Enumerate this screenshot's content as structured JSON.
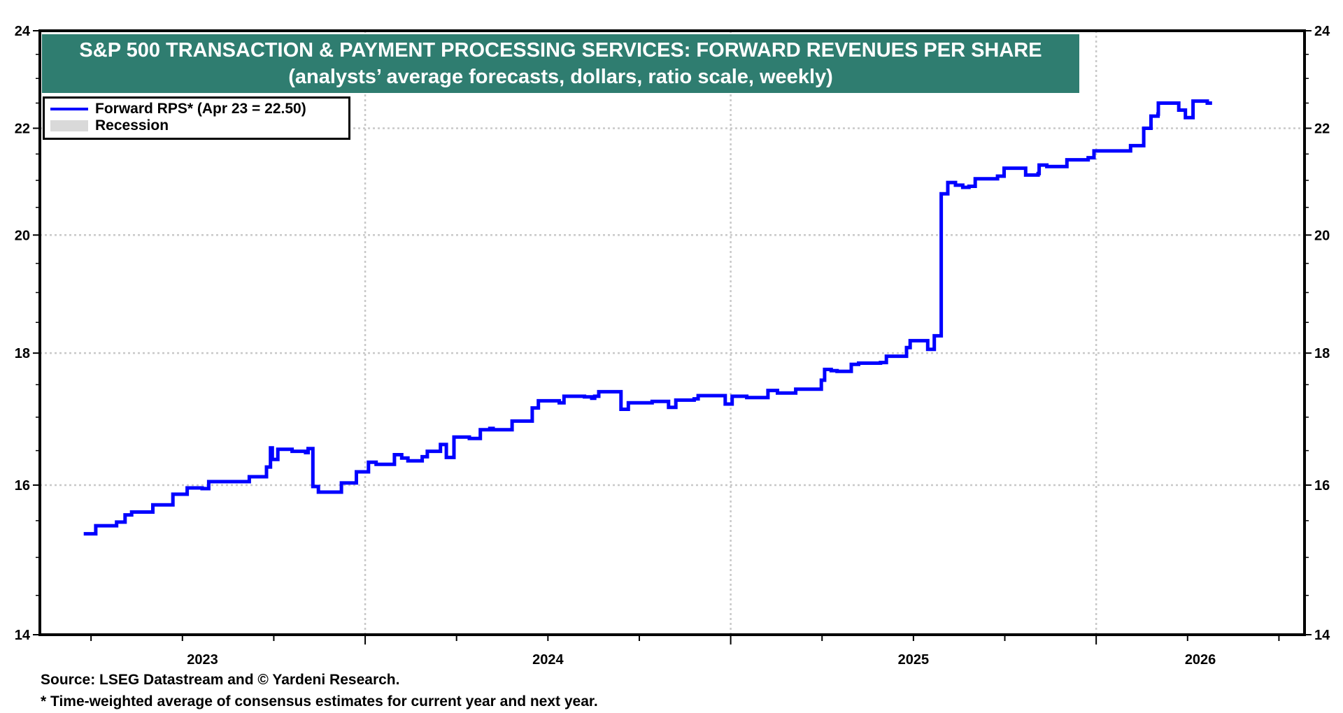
{
  "chart_data": {
    "type": "line",
    "title": "S&P 500 TRANSACTION & PAYMENT PROCESSING SERVICES: FORWARD REVENUES PER SHARE",
    "subtitle": "(analysts’ average forecasts, dollars, ratio scale, weekly)",
    "xlabel": "",
    "ylabel": "",
    "y_scale": "log",
    "ylim": [
      14,
      24
    ],
    "y_ticks": [
      14,
      16,
      18,
      20,
      22,
      24
    ],
    "y_tick_labels": [
      "14",
      "16",
      "18",
      "20",
      "22",
      "24"
    ],
    "y_minor_ticks": [
      14.5,
      15,
      15.5,
      16.5,
      17,
      17.5,
      18.5,
      19,
      19.5,
      20.5,
      21,
      21.5,
      22.5,
      23,
      23.5
    ],
    "xlim": [
      2023.11,
      2026.57
    ],
    "x_tick_labels": [
      "2023",
      "2024",
      "2025",
      "2026"
    ],
    "x_year_starts": [
      2024,
      2025,
      2026
    ],
    "grid": true,
    "legend": {
      "placement": "top-left",
      "entries": [
        {
          "label": "Forward RPS* (Apr 23 = 22.50)",
          "color": "#0000FF",
          "kind": "line"
        },
        {
          "label": "Recession",
          "color": "#D9D9D9",
          "kind": "area"
        }
      ]
    },
    "series": [
      {
        "name": "Forward RPS*",
        "color": "#0000FF",
        "step": true,
        "points": [
          [
            2023.23,
            15.32
          ],
          [
            2023.263,
            15.43
          ],
          [
            2023.32,
            15.48
          ],
          [
            2023.343,
            15.58
          ],
          [
            2023.361,
            15.62
          ],
          [
            2023.419,
            15.72
          ],
          [
            2023.474,
            15.87
          ],
          [
            2023.513,
            15.96
          ],
          [
            2023.554,
            15.95
          ],
          [
            2023.572,
            16.05
          ],
          [
            2023.683,
            16.12
          ],
          [
            2023.73,
            16.26
          ],
          [
            2023.741,
            16.54
          ],
          [
            2023.746,
            16.37
          ],
          [
            2023.761,
            16.52
          ],
          [
            2023.8,
            16.49
          ],
          [
            2023.837,
            16.47
          ],
          [
            2023.844,
            16.53
          ],
          [
            2023.857,
            15.98
          ],
          [
            2023.872,
            15.9
          ],
          [
            2023.935,
            16.03
          ],
          [
            2023.976,
            16.19
          ],
          [
            2024.009,
            16.33
          ],
          [
            2024.03,
            16.3
          ],
          [
            2024.08,
            16.44
          ],
          [
            2024.1,
            16.39
          ],
          [
            2024.117,
            16.35
          ],
          [
            2024.156,
            16.41
          ],
          [
            2024.17,
            16.49
          ],
          [
            2024.206,
            16.59
          ],
          [
            2024.222,
            16.4
          ],
          [
            2024.243,
            16.7
          ],
          [
            2024.285,
            16.68
          ],
          [
            2024.315,
            16.81
          ],
          [
            2024.341,
            16.83
          ],
          [
            2024.35,
            16.81
          ],
          [
            2024.402,
            16.94
          ],
          [
            2024.457,
            17.14
          ],
          [
            2024.474,
            17.25
          ],
          [
            2024.531,
            17.22
          ],
          [
            2024.544,
            17.32
          ],
          [
            2024.6,
            17.31
          ],
          [
            2024.62,
            17.29
          ],
          [
            2024.628,
            17.32
          ],
          [
            2024.639,
            17.39
          ],
          [
            2024.7,
            17.12
          ],
          [
            2024.72,
            17.22
          ],
          [
            2024.785,
            17.24
          ],
          [
            2024.83,
            17.15
          ],
          [
            2024.85,
            17.26
          ],
          [
            2024.9,
            17.28
          ],
          [
            2024.911,
            17.33
          ],
          [
            2024.985,
            17.2
          ],
          [
            2025.004,
            17.32
          ],
          [
            2025.044,
            17.3
          ],
          [
            2025.102,
            17.41
          ],
          [
            2025.128,
            17.37
          ],
          [
            2025.178,
            17.43
          ],
          [
            2025.248,
            17.57
          ],
          [
            2025.257,
            17.74
          ],
          [
            2025.275,
            17.72
          ],
          [
            2025.291,
            17.71
          ],
          [
            2025.33,
            17.82
          ],
          [
            2025.35,
            17.84
          ],
          [
            2025.41,
            17.85
          ],
          [
            2025.426,
            17.95
          ],
          [
            2025.481,
            18.09
          ],
          [
            2025.491,
            18.2
          ],
          [
            2025.539,
            18.06
          ],
          [
            2025.557,
            18.28
          ],
          [
            2025.576,
            20.75
          ],
          [
            2025.594,
            20.96
          ],
          [
            2025.615,
            20.91
          ],
          [
            2025.635,
            20.87
          ],
          [
            2025.652,
            20.89
          ],
          [
            2025.669,
            21.03
          ],
          [
            2025.73,
            21.08
          ],
          [
            2025.748,
            21.23
          ],
          [
            2025.807,
            21.1
          ],
          [
            2025.841,
            21.13
          ],
          [
            2025.844,
            21.29
          ],
          [
            2025.865,
            21.26
          ],
          [
            2025.92,
            21.39
          ],
          [
            2025.978,
            21.43
          ],
          [
            2025.994,
            21.56
          ],
          [
            2026.094,
            21.66
          ],
          [
            2026.13,
            22.0
          ],
          [
            2026.15,
            22.24
          ],
          [
            2026.169,
            22.28
          ],
          [
            2026.17,
            22.5
          ],
          [
            2026.226,
            22.36
          ],
          [
            2026.244,
            22.21
          ],
          [
            2026.265,
            22.54
          ],
          [
            2026.304,
            22.5
          ],
          [
            2026.317,
            22.5
          ]
        ]
      }
    ],
    "footnotes": [
      "Source: LSEG Datastream and © Yardeni Research.",
      "* Time-weighted average of consensus estimates for current year and next year."
    ]
  },
  "header": {
    "title": "S&P 500 TRANSACTION & PAYMENT PROCESSING SERVICES: FORWARD REVENUES PER SHARE",
    "subtitle": "(analysts’ average forecasts, dollars, ratio scale, weekly)",
    "background_color": "#2F7D70"
  },
  "legend": {
    "line_label": "Forward RPS* (Apr 23 = 22.50)",
    "recession_label": "Recession"
  },
  "footer": {
    "source": "Source: LSEG Datastream and © Yardeni Research.",
    "note": "* Time-weighted average of consensus estimates for current year and next year."
  }
}
